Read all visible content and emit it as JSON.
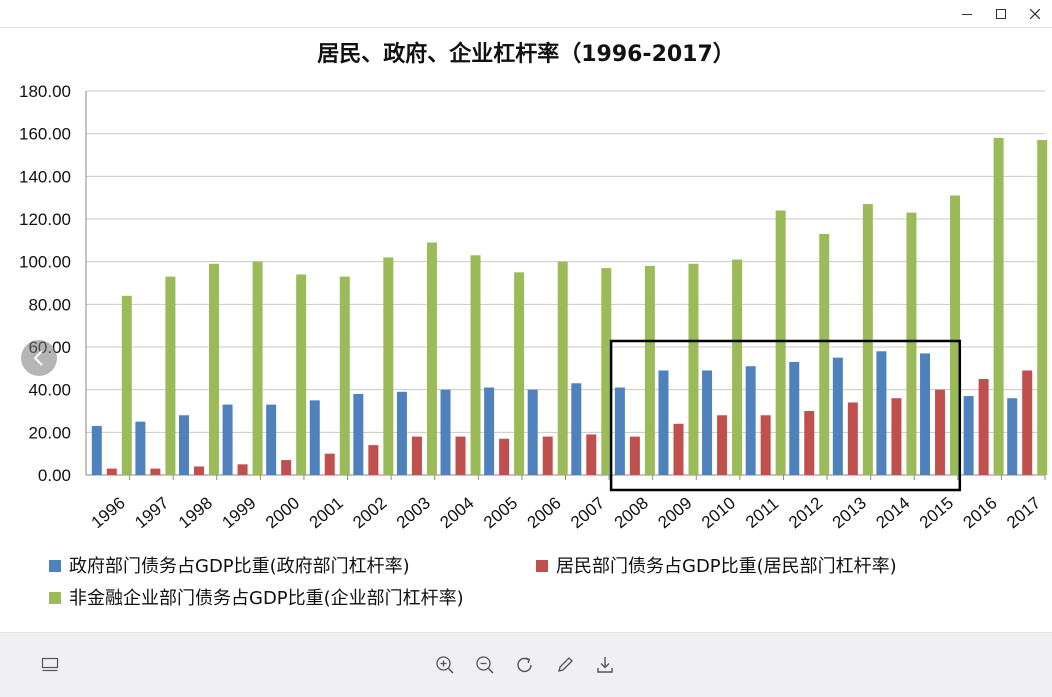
{
  "window": {
    "minimize_icon": "minimize-icon",
    "maximize_icon": "maximize-icon",
    "close_icon": "close-icon"
  },
  "chart_data": {
    "type": "bar",
    "title": "居民、政府、企业杠杆率（1996-2017）",
    "ylim": [
      0,
      180
    ],
    "yticks": [
      "0.00",
      "20.00",
      "40.00",
      "60.00",
      "80.00",
      "100.00",
      "120.00",
      "140.00",
      "160.00",
      "180.00"
    ],
    "grid": true,
    "legend_position": "bottom",
    "categories": [
      "1996",
      "1997",
      "1998",
      "1999",
      "2000",
      "2001",
      "2002",
      "2003",
      "2004",
      "2005",
      "2006",
      "2007",
      "2008",
      "2009",
      "2010",
      "2011",
      "2012",
      "2013",
      "2014",
      "2015",
      "2016",
      "2017"
    ],
    "series": [
      {
        "name": "政府部门债务占GDP比重(政府部门杠杆率)",
        "color": "#4f81bd",
        "values": [
          23,
          25,
          28,
          33,
          33,
          35,
          38,
          39,
          40,
          41,
          40,
          43,
          41,
          49,
          49,
          51,
          53,
          55,
          58,
          57,
          37,
          36
        ]
      },
      {
        "name": "居民部门债务占GDP比重(居民部门杠杆率)",
        "color": "#c0504d",
        "values": [
          3,
          3,
          4,
          5,
          7,
          10,
          14,
          18,
          18,
          17,
          18,
          19,
          18,
          24,
          28,
          28,
          30,
          34,
          36,
          40,
          45,
          49
        ]
      },
      {
        "name": "非金融企业部门债务占GDP比重(企业部门杠杆率)",
        "color": "#9bbb59",
        "values": [
          84,
          93,
          99,
          100,
          94,
          93,
          102,
          109,
          103,
          95,
          100,
          97,
          98,
          99,
          101,
          124,
          113,
          127,
          123,
          131,
          158,
          157
        ]
      }
    ],
    "highlight_range": [
      "2008",
      "2015"
    ]
  },
  "toolbar": {
    "items": [
      "thumbnail-icon",
      "zoom-in-icon",
      "zoom-out-icon",
      "rotate-icon",
      "edit-icon",
      "download-icon"
    ]
  },
  "nav": {
    "prev_icon": "chevron-left-icon"
  }
}
